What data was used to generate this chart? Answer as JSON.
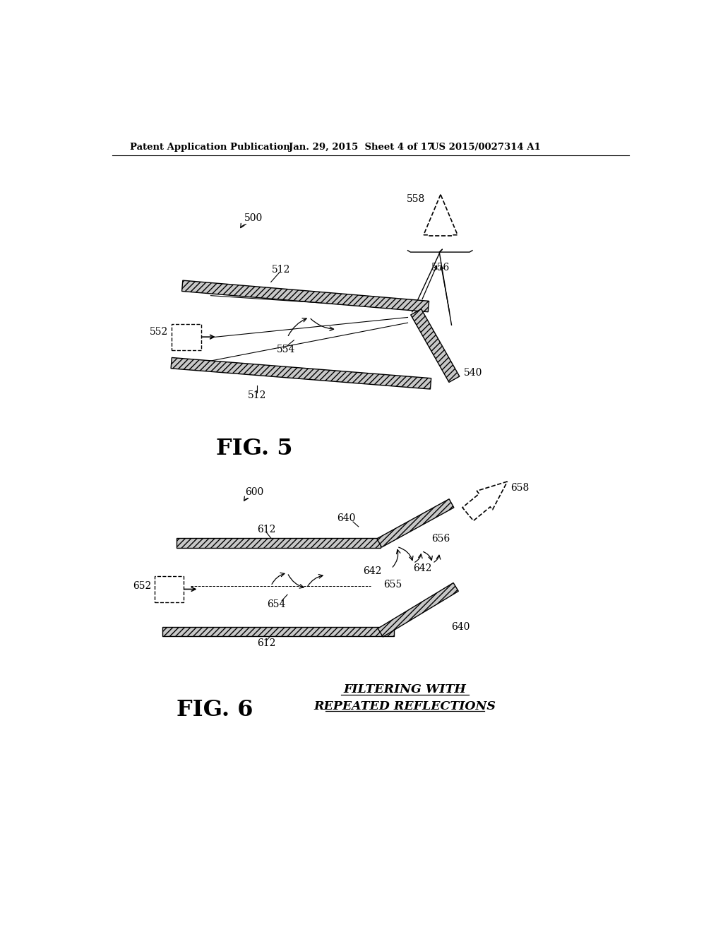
{
  "bg_color": "#ffffff",
  "header_left": "Patent Application Publication",
  "header_mid": "Jan. 29, 2015  Sheet 4 of 17",
  "header_right": "US 2015/0027314 A1",
  "fig5_label": "FIG. 5",
  "fig6_label": "FIG. 6",
  "caption_line1": "FILTERING WITH",
  "caption_line2": "REPEATED REFLECTIONS"
}
